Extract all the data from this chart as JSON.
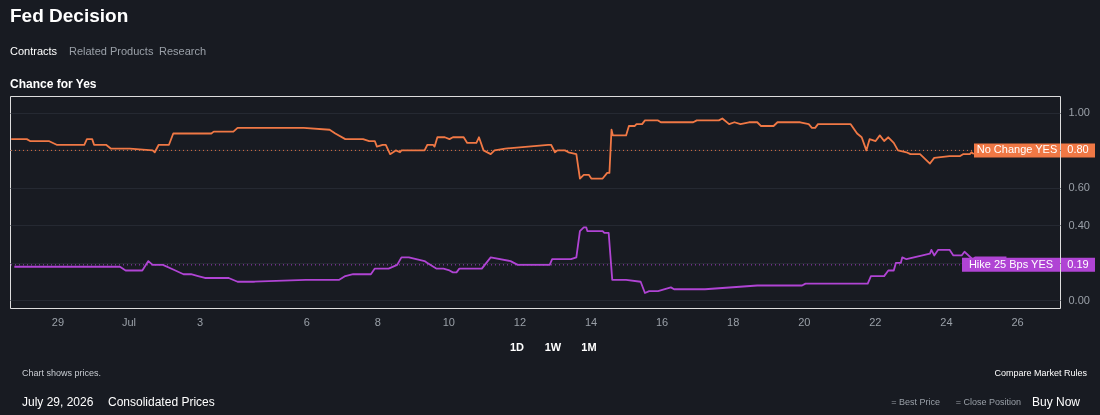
{
  "chart_data": {
    "type": "line",
    "title": "Fed Decision",
    "subtitle": "Chance for Yes",
    "xlim": [
      "2026-06-27T16:00",
      "2026-07-27T05:00"
    ],
    "xticks": [
      {
        "value": "2026-06-29",
        "label": "29"
      },
      {
        "value": "2026-07-01",
        "label": "Jul"
      },
      {
        "value": "2026-07-03",
        "label": "3"
      },
      {
        "value": "2026-07-06",
        "label": "6"
      },
      {
        "value": "2026-07-08",
        "label": "8"
      },
      {
        "value": "2026-07-10",
        "label": "10"
      },
      {
        "value": "2026-07-12",
        "label": "12"
      },
      {
        "value": "2026-07-14",
        "label": "14"
      },
      {
        "value": "2026-07-16",
        "label": "16"
      },
      {
        "value": "2026-07-18",
        "label": "18"
      },
      {
        "value": "2026-07-20",
        "label": "20"
      },
      {
        "value": "2026-07-22",
        "label": "22"
      },
      {
        "value": "2026-07-24",
        "label": "24"
      },
      {
        "value": "2026-07-26",
        "label": "26"
      }
    ],
    "ylim": [
      -0.04,
      1.09
    ],
    "yticks": [
      {
        "value": 0,
        "label": "0.00"
      },
      {
        "value": 0.2,
        "label": null
      },
      {
        "value": 0.4,
        "label": "0.40"
      },
      {
        "value": 0.6,
        "label": "0.60"
      },
      {
        "value": 0.8,
        "label": null
      },
      {
        "value": 1,
        "label": "1.00"
      }
    ],
    "grid": "y",
    "legend": "right",
    "marker": "none",
    "line_style": "solid",
    "series": [
      {
        "name": "No Change YES",
        "color": "#f07845",
        "x": [
          "2026-06-27T16:48",
          "2026-06-28T03:20",
          "2026-06-28T05:30",
          "2026-06-28T18:10",
          "2026-06-28T23:30",
          "2026-06-29T18:10",
          "2026-06-29T19:55",
          "2026-06-29T23:30",
          "2026-06-30T00:45",
          "2026-06-30T08:50",
          "2026-06-30T12:00",
          "2026-07-01T00:55",
          "2026-07-01T16:20",
          "2026-07-01T17:45",
          "2026-07-01T20:25",
          "2026-07-02T03:20",
          "2026-07-02T06:15",
          "2026-07-03T07:55",
          "2026-07-03T09:35",
          "2026-07-03T22:50",
          "2026-07-04T01:40",
          "2026-07-05T22:20",
          "2026-07-06T15:50",
          "2026-07-06T19:40",
          "2026-07-07T02:25",
          "2026-07-07T14:25",
          "2026-07-07T18:30",
          "2026-07-07T22:20",
          "2026-07-07T23:45",
          "2026-07-08T03:35",
          "2026-07-08T05:45",
          "2026-07-08T08:40",
          "2026-07-08T12:30",
          "2026-07-08T15:20",
          "2026-07-08T16:20",
          "2026-07-09T07:55",
          "2026-07-09T09:50",
          "2026-07-09T13:40",
          "2026-07-09T14:40",
          "2026-07-09T16:35",
          "2026-07-09T21:35",
          "2026-07-10T00:45",
          "2026-07-10T03:05",
          "2026-07-10T10:20",
          "2026-07-10T12:45",
          "2026-07-10T18:55",
          "2026-07-10T20:40",
          "2026-07-10T23:45",
          "2026-07-11T04:35",
          "2026-07-11T07:10",
          "2026-07-11T14:25",
          "2026-07-12T19:25",
          "2026-07-12T21:20",
          "2026-07-13T00:00",
          "2026-07-13T01:40",
          "2026-07-13T06:45",
          "2026-07-13T09:05",
          "2026-07-13T14:25",
          "2026-07-13T16:50",
          "2026-07-13T19:25",
          "2026-07-13T22:50",
          "2026-07-14T00:30",
          "2026-07-14T08:10",
          "2026-07-14T11:15",
          "2026-07-14T12:45",
          "2026-07-14T14:10",
          "2026-07-14T15:05",
          "2026-07-15T00:00",
          "2026-07-15T01:55",
          "2026-07-15T05:45",
          "2026-07-15T07:00",
          "2026-07-15T10:50",
          "2026-07-15T12:45",
          "2026-07-15T21:35",
          "2026-07-15T23:30",
          "2026-07-16T21:20",
          "2026-07-16T23:45",
          "2026-07-17T14:40",
          "2026-07-17T17:00",
          "2026-07-17T21:35",
          "2026-07-18T01:10",
          "2026-07-18T05:15",
          "2026-07-18T11:00",
          "2026-07-18T16:35",
          "2026-07-18T19:10",
          "2026-07-19T03:35",
          "2026-07-19T06:15",
          "2026-07-19T21:35",
          "2026-07-20T03:20",
          "2026-07-20T05:30",
          "2026-07-20T07:40",
          "2026-07-20T09:35",
          "2026-07-21T07:40",
          "2026-07-21T12:00",
          "2026-07-21T15:05",
          "2026-07-21T18:15",
          "2026-07-21T20:25",
          "2026-07-22T00:30",
          "2026-07-22T03:20",
          "2026-07-22T06:15",
          "2026-07-22T09:05",
          "2026-07-22T12:45",
          "2026-07-22T15:35",
          "2026-07-22T21:20",
          "2026-07-23T00:00",
          "2026-07-23T06:30",
          "2026-07-23T13:10",
          "2026-07-23T16:05",
          "2026-07-24T02:25",
          "2026-07-24T09:35",
          "2026-07-24T11:30",
          "2026-07-24T16:05",
          "2026-07-24T17:15",
          "2026-07-24T18:45"
        ],
        "values": [
          0.86,
          0.86,
          0.85,
          0.85,
          0.83,
          0.83,
          0.86,
          0.86,
          0.83,
          0.83,
          0.81,
          0.81,
          0.8,
          0.79,
          0.83,
          0.83,
          0.89,
          0.89,
          0.9,
          0.9,
          0.92,
          0.92,
          0.91,
          0.89,
          0.86,
          0.86,
          0.85,
          0.85,
          0.82,
          0.83,
          0.83,
          0.78,
          0.8,
          0.79,
          0.8,
          0.8,
          0.83,
          0.83,
          0.82,
          0.87,
          0.87,
          0.86,
          0.87,
          0.87,
          0.84,
          0.84,
          0.87,
          0.8,
          0.78,
          0.8,
          0.81,
          0.83,
          0.83,
          0.79,
          0.8,
          0.8,
          0.79,
          0.78,
          0.65,
          0.67,
          0.67,
          0.65,
          0.65,
          0.68,
          0.68,
          0.91,
          0.88,
          0.88,
          0.93,
          0.93,
          0.94,
          0.94,
          0.96,
          0.96,
          0.95,
          0.95,
          0.96,
          0.96,
          0.97,
          0.94,
          0.95,
          0.94,
          0.95,
          0.95,
          0.93,
          0.93,
          0.95,
          0.95,
          0.94,
          0.92,
          0.92,
          0.94,
          0.94,
          0.89,
          0.87,
          0.8,
          0.86,
          0.85,
          0.88,
          0.85,
          0.87,
          0.84,
          0.8,
          0.79,
          0.78,
          0.78,
          0.73,
          0.76,
          0.77,
          0.77,
          0.78,
          0.78,
          0.79,
          0.78
        ]
      },
      {
        "name": "Hike 25 Bps YES",
        "color": "#b044d4",
        "x": [
          "2026-06-27T18:55",
          "2026-06-30T18:15",
          "2026-06-30T22:05",
          "2026-07-01T09:20",
          "2026-07-01T13:25",
          "2026-07-01T16:20",
          "2026-07-01T23:15",
          "2026-07-02T07:40",
          "2026-07-02T13:10",
          "2026-07-02T18:15",
          "2026-07-02T23:00",
          "2026-07-03T03:35",
          "2026-07-03T19:40",
          "2026-07-04T01:40",
          "2026-07-04T12:15",
          "2026-07-05T23:45",
          "2026-07-06T22:20",
          "2026-07-07T02:25",
          "2026-07-07T07:40",
          "2026-07-07T19:40",
          "2026-07-07T22:20",
          "2026-07-08T07:40",
          "2026-07-08T13:25",
          "2026-07-08T16:20",
          "2026-07-08T21:20",
          "2026-07-09T07:55",
          "2026-07-09T09:50",
          "2026-07-09T15:50",
          "2026-07-09T20:40",
          "2026-07-10T00:45",
          "2026-07-10T03:05",
          "2026-07-10T05:30",
          "2026-07-10T07:25",
          "2026-07-10T22:35",
          "2026-07-11T04:35",
          "2026-07-11T18:00",
          "2026-07-11T22:50",
          "2026-07-12T20:25",
          "2026-07-12T22:05",
          "2026-07-13T10:50",
          "2026-07-13T14:25",
          "2026-07-13T16:50",
          "2026-07-13T19:25",
          "2026-07-13T21:05",
          "2026-07-13T21:50",
          "2026-07-14T08:10",
          "2026-07-14T09:20",
          "2026-07-14T12:15",
          "2026-07-14T14:40",
          "2026-07-15T00:00",
          "2026-07-15T09:50",
          "2026-07-15T12:45",
          "2026-07-15T15:35",
          "2026-07-15T21:35",
          "2026-07-16T06:15",
          "2026-07-16T08:25",
          "2026-07-17T05:15",
          "2026-07-18T16:35",
          "2026-07-19T22:50",
          "2026-07-20T01:10",
          "2026-07-21T19:10",
          "2026-07-21T21:20",
          "2026-07-22T06:15",
          "2026-07-22T09:05",
          "2026-07-22T12:45",
          "2026-07-22T14:10",
          "2026-07-22T17:30",
          "2026-07-22T18:30",
          "2026-07-22T21:20",
          "2026-07-23T13:10",
          "2026-07-23T14:10",
          "2026-07-23T16:05",
          "2026-07-23T18:45",
          "2026-07-24T02:25",
          "2026-07-24T05:00",
          "2026-07-24T10:35",
          "2026-07-24T12:30",
          "2026-07-24T18:00",
          "2026-07-24T19:55",
          "2026-07-25T16:50"
        ],
        "values": [
          0.18,
          0.18,
          0.16,
          0.16,
          0.21,
          0.19,
          0.19,
          0.16,
          0.14,
          0.14,
          0.13,
          0.12,
          0.12,
          0.1,
          0.1,
          0.11,
          0.11,
          0.13,
          0.14,
          0.14,
          0.17,
          0.17,
          0.19,
          0.23,
          0.23,
          0.21,
          0.2,
          0.17,
          0.17,
          0.16,
          0.15,
          0.15,
          0.17,
          0.17,
          0.23,
          0.21,
          0.19,
          0.19,
          0.22,
          0.22,
          0.23,
          0.37,
          0.39,
          0.39,
          0.37,
          0.37,
          0.36,
          0.36,
          0.11,
          0.11,
          0.1,
          0.04,
          0.05,
          0.05,
          0.07,
          0.06,
          0.06,
          0.08,
          0.08,
          0.09,
          0.09,
          0.13,
          0.13,
          0.16,
          0.16,
          0.2,
          0.2,
          0.23,
          0.22,
          0.25,
          0.27,
          0.24,
          0.27,
          0.27,
          0.24,
          0.24,
          0.26,
          0.22,
          0.23,
          0.23
        ]
      }
    ],
    "ref_lines": [
      {
        "axis": "y",
        "value": 0.8,
        "label": "0.80",
        "color": "#f07845",
        "line_style": "dotted"
      },
      {
        "axis": "y",
        "value": 0.19,
        "label": "0.19",
        "color": "#b044d4",
        "line_style": "dotted"
      }
    ],
    "annotations": [
      "Contracts",
      "Related Products",
      "Research",
      "1D",
      "1W",
      "1M",
      "Chart shows prices.",
      "Compare Market Rules",
      "July 29, 2026",
      "Consolidated Prices",
      "= Best Price",
      "= Close Position",
      "Buy Now"
    ]
  }
}
